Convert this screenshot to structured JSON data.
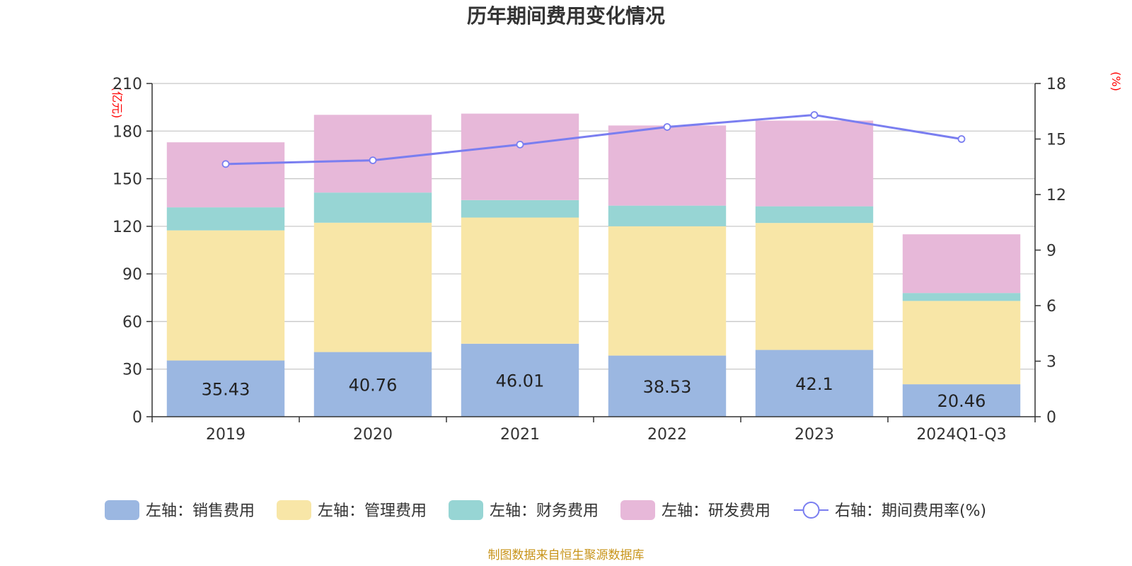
{
  "chart_data": {
    "type": "bar",
    "stacked": true,
    "title": "历年期间费用变化情况",
    "categories": [
      "2019",
      "2020",
      "2021",
      "2022",
      "2023",
      "2024Q1-Q3"
    ],
    "left_axis": {
      "unit": "(亿元)",
      "min": 0,
      "max": 210,
      "ticks": [
        0,
        30,
        60,
        90,
        120,
        150,
        180,
        210
      ]
    },
    "right_axis": {
      "unit": "(%)",
      "min": 0,
      "max": 18,
      "ticks": [
        0,
        3,
        6,
        9,
        12,
        15,
        18
      ]
    },
    "series": [
      {
        "name": "左轴：销售费用",
        "type": "bar",
        "axis": "left",
        "color": "#9bb7e1",
        "values": [
          35.43,
          40.76,
          46.01,
          38.53,
          42.1,
          20.46
        ],
        "labels": [
          "35.43",
          "40.76",
          "46.01",
          "38.53",
          "42.1",
          "20.46"
        ]
      },
      {
        "name": "左轴：管理费用",
        "type": "bar",
        "axis": "left",
        "color": "#f8e6a7",
        "values": [
          82.0,
          81.5,
          79.5,
          81.5,
          80.0,
          52.5
        ]
      },
      {
        "name": "左轴：财务费用",
        "type": "bar",
        "axis": "left",
        "color": "#97d5d4",
        "values": [
          14.5,
          19.0,
          11.0,
          13.0,
          10.5,
          5.0
        ]
      },
      {
        "name": "左轴：研发费用",
        "type": "bar",
        "axis": "left",
        "color": "#e7b8d9",
        "values": [
          41.0,
          49.0,
          54.5,
          50.5,
          54.0,
          37.0
        ]
      },
      {
        "name": "右轴：期间费用率(%)",
        "type": "line",
        "axis": "right",
        "color": "#7a7ef0",
        "values": [
          13.65,
          13.85,
          14.7,
          15.65,
          16.3,
          15.0
        ]
      }
    ],
    "grid": true,
    "legend_position": "bottom"
  },
  "footer": "制图数据来自恒生聚源数据库"
}
